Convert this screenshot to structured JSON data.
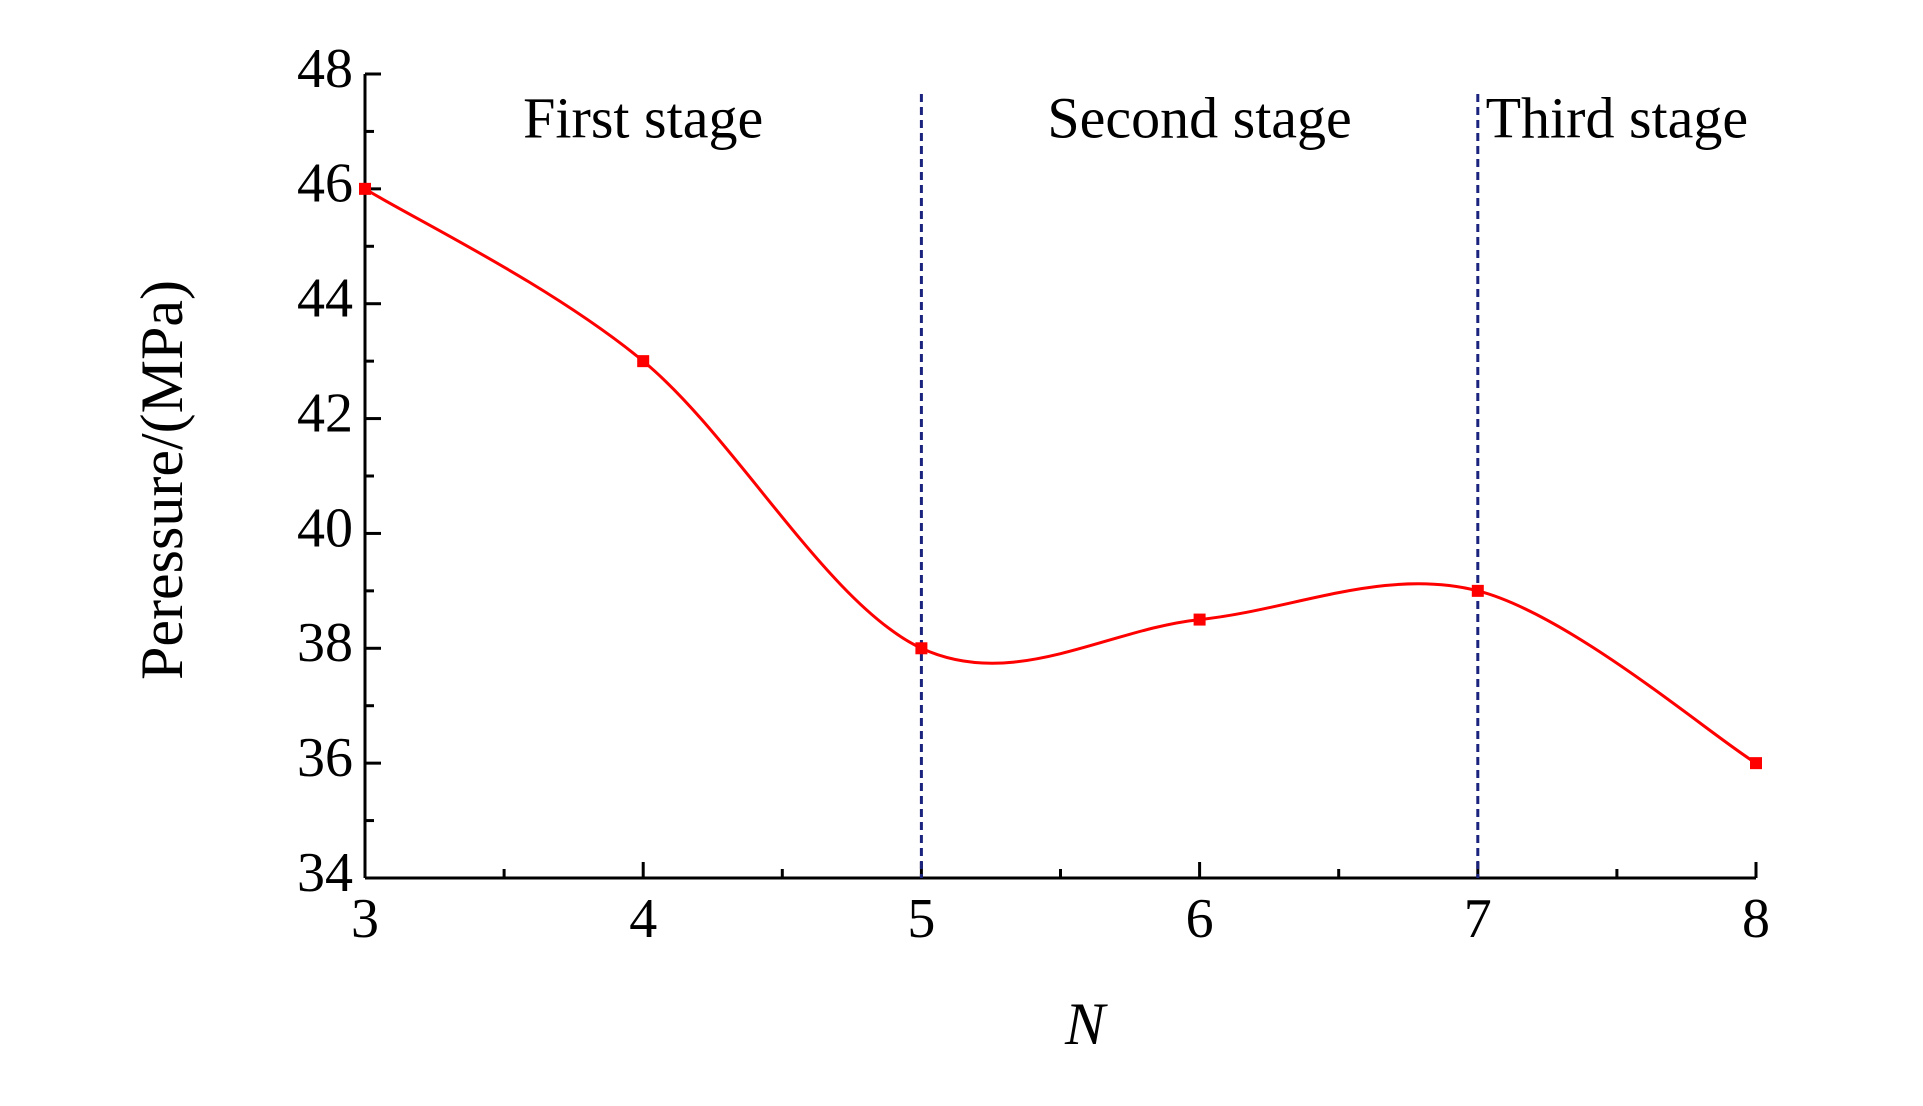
{
  "chart_data": {
    "type": "line",
    "x": [
      3,
      4,
      5,
      6,
      7,
      8
    ],
    "series": [
      {
        "color": "#ff0000",
        "values": [
          46,
          43,
          38,
          38.5,
          39,
          36
        ]
      }
    ],
    "xlim": [
      3,
      8
    ],
    "xticks": [
      3,
      4,
      5,
      6,
      7,
      8
    ],
    "ylim": [
      34,
      48
    ],
    "yticks": [
      34,
      36,
      38,
      40,
      42,
      44,
      46,
      48
    ],
    "xlabel": "N",
    "ylabel": "Peressure/(MPa)",
    "vlines": [
      5,
      7
    ],
    "vline_color": "#1a237e",
    "annotations": [
      "First stage",
      "Second stage",
      "Third stage"
    ],
    "minor_ticks": true,
    "grid": false
  }
}
